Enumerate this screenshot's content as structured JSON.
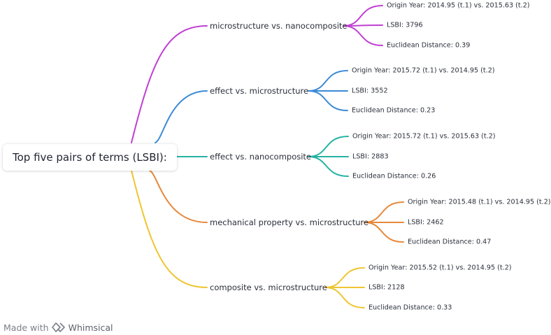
{
  "root": {
    "label": "Top five pairs of terms (LSBI):"
  },
  "pairs": [
    {
      "label": "microstructure vs. nanocomposite",
      "color": "#c03fd4",
      "details": [
        "Origin Year: 2014.95 (t.1) vs. 2015.63 (t.2)",
        "LSBI: 3796",
        "Euclidean Distance: 0.39"
      ]
    },
    {
      "label": "effect vs. microstructure",
      "color": "#3b8ad6",
      "details": [
        "Origin Year: 2015.72 (t.1) vs. 2014.95 (t.2)",
        "LSBI: 3552",
        "Euclidean Distance: 0.23"
      ]
    },
    {
      "label": "effect vs. nanocomposite",
      "color": "#26b3a3",
      "details": [
        "Origin Year: 2015.72 (t.1) vs. 2015.63 (t.2)",
        "LSBI: 2883",
        "Euclidean Distance: 0.26"
      ]
    },
    {
      "label": "mechanical property vs. microstructure",
      "color": "#e6883a",
      "details": [
        "Origin Year: 2015.48 (t.1) vs. 2014.95 (t.2)",
        "LSBI: 2462",
        "Euclidean Distance: 0.47"
      ]
    },
    {
      "label": "composite vs. microstructure",
      "color": "#efc531",
      "details": [
        "Origin Year: 2015.52 (t.1) vs. 2014.95 (t.2)",
        "LSBI: 2128",
        "Euclidean Distance: 0.33"
      ]
    }
  ],
  "footer": {
    "prefix": "Made with",
    "brand": "Whimsical",
    "logo_icon": "whimsical-logo-icon"
  }
}
